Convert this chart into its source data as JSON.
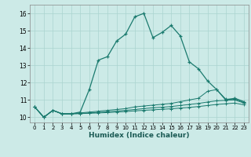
{
  "title": "",
  "xlabel": "Humidex (Indice chaleur)",
  "bg_color": "#cceae7",
  "grid_color": "#aad4d0",
  "line_color": "#1a7a6e",
  "xlim": [
    -0.5,
    23.5
  ],
  "ylim": [
    9.7,
    16.5
  ],
  "xticks": [
    0,
    1,
    2,
    3,
    4,
    5,
    6,
    7,
    8,
    9,
    10,
    11,
    12,
    13,
    14,
    15,
    16,
    17,
    18,
    19,
    20,
    21,
    22,
    23
  ],
  "yticks": [
    10,
    11,
    12,
    13,
    14,
    15,
    16
  ],
  "line1_x": [
    0,
    1,
    2,
    3,
    4,
    5,
    6,
    7,
    8,
    9,
    10,
    11,
    12,
    13,
    14,
    15,
    16,
    17,
    18,
    19,
    20,
    21,
    22,
    23
  ],
  "line1_y": [
    10.6,
    10.0,
    10.4,
    10.2,
    10.2,
    10.3,
    11.6,
    13.3,
    13.5,
    14.4,
    14.8,
    15.8,
    16.0,
    14.6,
    14.9,
    15.3,
    14.7,
    13.2,
    12.8,
    12.1,
    11.6,
    11.0,
    11.1,
    10.9
  ],
  "line2_x": [
    0,
    1,
    2,
    3,
    4,
    5,
    6,
    7,
    8,
    9,
    10,
    11,
    12,
    13,
    14,
    15,
    16,
    17,
    18,
    19,
    20,
    21,
    22,
    23
  ],
  "line2_y": [
    10.6,
    10.0,
    10.4,
    10.2,
    10.2,
    10.25,
    10.3,
    10.35,
    10.4,
    10.45,
    10.5,
    10.6,
    10.65,
    10.7,
    10.75,
    10.8,
    10.9,
    11.0,
    11.1,
    11.5,
    11.6,
    11.05,
    11.05,
    10.85
  ],
  "line3_x": [
    0,
    1,
    2,
    3,
    4,
    5,
    6,
    7,
    8,
    9,
    10,
    11,
    12,
    13,
    14,
    15,
    16,
    17,
    18,
    19,
    20,
    21,
    22,
    23
  ],
  "line3_y": [
    10.6,
    10.0,
    10.4,
    10.2,
    10.2,
    10.22,
    10.25,
    10.28,
    10.32,
    10.36,
    10.4,
    10.45,
    10.5,
    10.55,
    10.58,
    10.62,
    10.68,
    10.74,
    10.8,
    10.88,
    10.95,
    10.98,
    11.0,
    10.82
  ],
  "line4_x": [
    0,
    1,
    2,
    3,
    4,
    5,
    6,
    7,
    8,
    9,
    10,
    11,
    12,
    13,
    14,
    15,
    16,
    17,
    18,
    19,
    20,
    21,
    22,
    23
  ],
  "line4_y": [
    10.6,
    10.0,
    10.4,
    10.2,
    10.2,
    10.21,
    10.23,
    10.25,
    10.27,
    10.3,
    10.33,
    10.37,
    10.4,
    10.43,
    10.46,
    10.49,
    10.53,
    10.57,
    10.62,
    10.68,
    10.74,
    10.78,
    10.82,
    10.72
  ]
}
